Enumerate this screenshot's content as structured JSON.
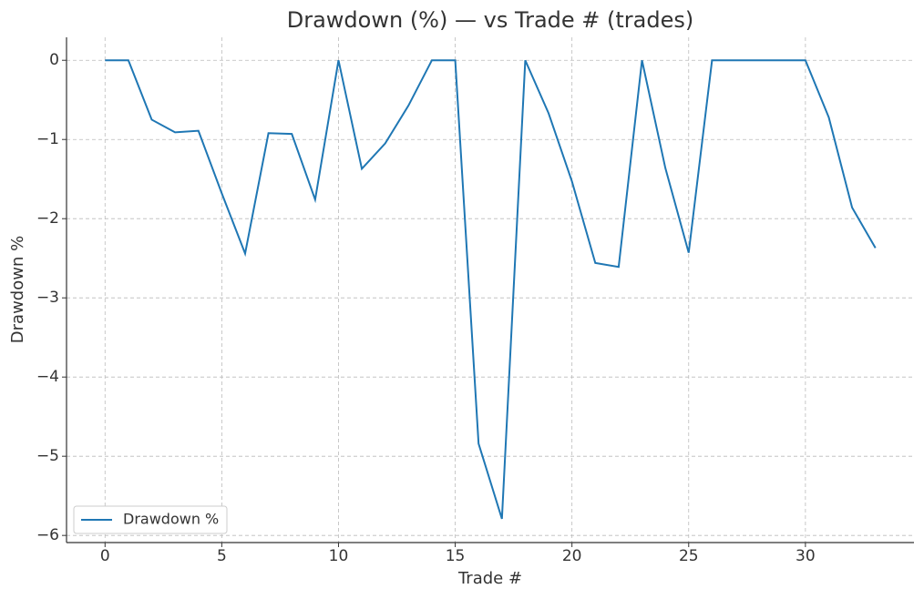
{
  "chart_data": {
    "type": "line",
    "title": "Drawdown (%) — vs Trade # (trades)",
    "x_label": "Trade #",
    "y_label": "Drawdown %",
    "x": [
      0,
      1,
      2,
      3,
      4,
      5,
      6,
      7,
      8,
      9,
      10,
      11,
      12,
      13,
      14,
      15,
      16,
      17,
      18,
      19,
      20,
      21,
      22,
      23,
      24,
      25,
      26,
      27,
      28,
      29,
      30,
      31,
      32,
      33
    ],
    "series": [
      {
        "name": "Drawdown %",
        "color": "#1f77b4",
        "values": [
          0,
          0,
          -0.75,
          -0.91,
          -0.89,
          -1.68,
          -2.44,
          -0.92,
          -0.93,
          -1.76,
          0,
          -1.37,
          -1.05,
          -0.57,
          0,
          0,
          -4.84,
          -5.79,
          0,
          -0.67,
          -1.53,
          -2.56,
          -2.61,
          0,
          -1.36,
          -2.43,
          0,
          0,
          0,
          0,
          0,
          -0.72,
          -1.86,
          -2.37
        ]
      }
    ],
    "xlim": [
      -1.65,
      34.65
    ],
    "xticks": [
      0,
      5,
      10,
      15,
      20,
      25,
      30
    ],
    "ylim": [
      -6.09,
      0.29
    ],
    "yticks": [
      0,
      {
        "value": -1,
        "label": "−1"
      },
      {
        "value": -2,
        "label": "−2"
      },
      {
        "value": -3,
        "label": "−3"
      },
      {
        "value": -4,
        "label": "−4"
      },
      {
        "value": -5,
        "label": "−5"
      },
      {
        "value": -6,
        "label": "−6"
      }
    ],
    "grid": true,
    "legend": "lower-left"
  }
}
